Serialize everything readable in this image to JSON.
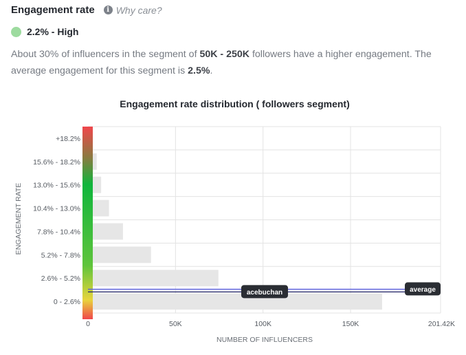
{
  "header": {
    "title": "Engagement rate",
    "info_icon": "info-icon",
    "why_care": "Why care?"
  },
  "rate": {
    "dot_color": "#9ddb9f",
    "text": "2.2% - High"
  },
  "description": {
    "p1": "About 30% of influencers in the segment of ",
    "segment": "50K - 250K",
    "p2": " followers have a higher engagement. The average engagement for this segment is ",
    "avg": "2.5%",
    "p3": "."
  },
  "chart_data": {
    "type": "bar",
    "orientation": "horizontal",
    "title": "Engagement rate distribution ( followers segment)",
    "xlabel": "NUMBER OF INFLUENCERS",
    "ylabel": "ENGAGEMENT RATE",
    "categories": [
      "+18.2%",
      "15.6% - 18.2%",
      "13.0% - 15.6%",
      "10.4% - 13.0%",
      "7.8% - 10.4%",
      "5.2% - 7.8%",
      "2.6% - 5.2%",
      "0 - 2.6%"
    ],
    "values": [
      0,
      5000,
      7500,
      12000,
      20000,
      36000,
      74500,
      168000
    ],
    "xlim": [
      0,
      201420
    ],
    "xticks": [
      0,
      50000,
      100000,
      150000,
      201420
    ],
    "xtick_labels": [
      "0",
      "50K",
      "100K",
      "150K",
      "201.42K"
    ],
    "grid": true,
    "bar_color": "#e6e6e6",
    "markers": [
      {
        "label": "acebuchan",
        "engagement": 2.2
      },
      {
        "label": "average",
        "engagement": 2.5
      }
    ],
    "gradient_colors": [
      "#f0464c",
      "#0fb53c",
      "#e8d43c",
      "#f0464c"
    ]
  }
}
